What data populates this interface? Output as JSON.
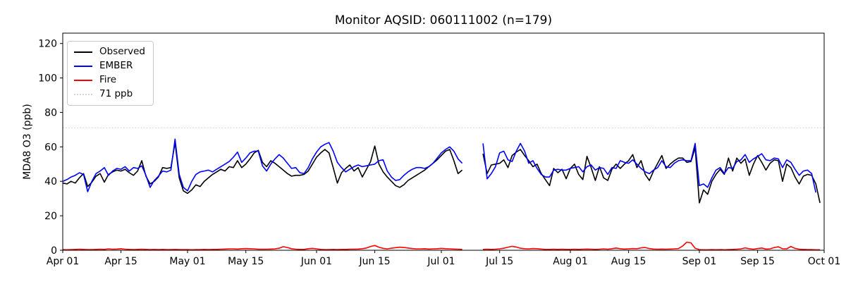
{
  "chart_data": {
    "type": "line",
    "title": "Monitor AQSID: 060111002 (n=179)",
    "ylabel": "MDA8 O3 (ppb)",
    "n_points": 179,
    "ylim": [
      0,
      126
    ],
    "yticks": [
      0,
      20,
      40,
      60,
      80,
      100,
      120
    ],
    "x_total_days": 183,
    "x_cadence": "daily",
    "grid": false,
    "legend_position": "upper left",
    "xticks": [
      {
        "label": "Apr 01",
        "day": 0
      },
      {
        "label": "Apr 15",
        "day": 14
      },
      {
        "label": "May 01",
        "day": 30
      },
      {
        "label": "May 15",
        "day": 44
      },
      {
        "label": "Jun 01",
        "day": 61
      },
      {
        "label": "Jun 15",
        "day": 75
      },
      {
        "label": "Jul 01",
        "day": 91
      },
      {
        "label": "Jul 15",
        "day": 105
      },
      {
        "label": "Aug 01",
        "day": 122
      },
      {
        "label": "Aug 15",
        "day": 136
      },
      {
        "label": "Sep 01",
        "day": 153
      },
      {
        "label": "Sep 15",
        "day": 167
      },
      {
        "label": "Oct 01",
        "day": 183
      }
    ],
    "threshold": {
      "label": "71 ppb",
      "value": 71,
      "color": "#d3d3d3",
      "linestyle": "dotted"
    },
    "series": [
      {
        "name": "Observed",
        "color": "#000000",
        "linestyle": "solid",
        "values": [
          39,
          38.5,
          40,
          39,
          42,
          44.5,
          37,
          39.5,
          43,
          44.5,
          39.5,
          44,
          45.5,
          46.5,
          46,
          47,
          45,
          43.5,
          46,
          52,
          43,
          38.5,
          40,
          42.5,
          48,
          47.5,
          48,
          62.5,
          42,
          34.5,
          33,
          35,
          38,
          37,
          40,
          42,
          44,
          45.5,
          47,
          46,
          48.5,
          48,
          52,
          48,
          50,
          53,
          56.5,
          58,
          51,
          48.5,
          52,
          50.5,
          48.5,
          46.5,
          44.5,
          43,
          43.5,
          43.5,
          44,
          46,
          50,
          54,
          56.5,
          58.5,
          56.5,
          48,
          39,
          45,
          47.5,
          49.5,
          46,
          48,
          42.5,
          47,
          51.5,
          60.5,
          50,
          45.5,
          42.5,
          40,
          37.5,
          36.5,
          38,
          40.5,
          42,
          43.5,
          45,
          46.5,
          48.5,
          50.5,
          52.5,
          55,
          57.5,
          58.5,
          52,
          44.5,
          46.5,
          null,
          null,
          null,
          null,
          56,
          44.5,
          49.5,
          50,
          50.5,
          52.5,
          48,
          55,
          57,
          58.5,
          55,
          52,
          48.5,
          50,
          44.5,
          41,
          37.5,
          47.5,
          45,
          47,
          41.5,
          47.5,
          50,
          44,
          41,
          54.5,
          48,
          40.5,
          48.5,
          42,
          40.5,
          47,
          50,
          47.5,
          50,
          52,
          55.5,
          48,
          52,
          44,
          40.5,
          46,
          50.5,
          55,
          47.5,
          50,
          52,
          53.5,
          53.5,
          51,
          51.5,
          59.5,
          27.5,
          35,
          32.5,
          40,
          44,
          47,
          44,
          53.5,
          46,
          53.5,
          50.5,
          53,
          43.5,
          50,
          55,
          51,
          46.5,
          50.5,
          52.5,
          52,
          40,
          50,
          48,
          42.5,
          38.5,
          43,
          44,
          43.5,
          38.5,
          27.5
        ]
      },
      {
        "name": "EMBER",
        "color": "#0000ff",
        "linestyle": "solid",
        "values": [
          40,
          41,
          42.5,
          43.5,
          45,
          44,
          34,
          40,
          44.5,
          46,
          48,
          43.5,
          46,
          47.5,
          47,
          48.5,
          46,
          48,
          47.5,
          49,
          43.5,
          36.5,
          40.5,
          43,
          46,
          45.5,
          46.5,
          64.5,
          44,
          36.5,
          34.5,
          40,
          44,
          45.5,
          46,
          46.5,
          45.5,
          47,
          48.5,
          50,
          51.5,
          54,
          57,
          51,
          53.5,
          56.5,
          57.5,
          57.5,
          49,
          46,
          50,
          53,
          55.5,
          53.5,
          50.5,
          47.5,
          48,
          45,
          44.5,
          48,
          53,
          57,
          60,
          61.5,
          62.5,
          57.5,
          51,
          48,
          45.5,
          47,
          48.5,
          49.5,
          48.5,
          49,
          49.5,
          50,
          52,
          52.5,
          46,
          42.5,
          40.5,
          41,
          43.5,
          45.5,
          47,
          48,
          48,
          47.5,
          48.5,
          50.5,
          53.5,
          56.5,
          58.5,
          60,
          57.5,
          53,
          50.5,
          null,
          null,
          null,
          null,
          62,
          41.5,
          44.5,
          48.5,
          56.5,
          57.5,
          52.5,
          51.5,
          57.5,
          62,
          57.5,
          50.5,
          52,
          47.5,
          44,
          42.5,
          42.5,
          46.5,
          47,
          46.5,
          46.5,
          47.5,
          48,
          48.5,
          45.5,
          48.5,
          49.5,
          46.5,
          48,
          47.5,
          44,
          48,
          47.5,
          52,
          51,
          50.5,
          52.5,
          50,
          47.5,
          45.5,
          44.5,
          46.5,
          48,
          52,
          48.5,
          48,
          50.5,
          52,
          52.5,
          52,
          52,
          62,
          37.5,
          38.5,
          36.5,
          42,
          46.5,
          48,
          44.5,
          48,
          47.5,
          51.5,
          52.5,
          55.5,
          51,
          53,
          54.5,
          56,
          52.5,
          52,
          53.5,
          53,
          48,
          52.5,
          51,
          47,
          43.5,
          46,
          46.5,
          44.5,
          33.5,
          null
        ]
      },
      {
        "name": "Fire",
        "color": "#ff0000",
        "linestyle": "solid",
        "values": [
          0.4,
          0.3,
          0.4,
          0.5,
          0.6,
          0.5,
          0.4,
          0.4,
          0.5,
          0.6,
          0.5,
          0.8,
          0.6,
          0.7,
          0.9,
          0.6,
          0.5,
          0.4,
          0.5,
          0.6,
          0.5,
          0.4,
          0.5,
          0.4,
          0.5,
          0.4,
          0.4,
          0.5,
          0.4,
          0.4,
          0.4,
          0.3,
          0.4,
          0.4,
          0.5,
          0.4,
          0.5,
          0.5,
          0.6,
          0.7,
          0.8,
          0.8,
          0.7,
          0.9,
          1.0,
          0.9,
          0.8,
          0.6,
          0.6,
          0.6,
          0.7,
          0.8,
          1.2,
          2.1,
          1.6,
          0.9,
          0.6,
          0.5,
          0.5,
          0.9,
          1.1,
          0.8,
          0.5,
          0.4,
          0.4,
          0.5,
          0.4,
          0.5,
          0.5,
          0.6,
          0.6,
          0.7,
          0.9,
          1.3,
          2.2,
          2.8,
          1.8,
          1.1,
          0.8,
          1.2,
          1.5,
          1.8,
          1.6,
          1.3,
          1.0,
          0.8,
          0.8,
          0.9,
          0.7,
          0.8,
          0.9,
          1.1,
          0.9,
          0.8,
          0.7,
          0.6,
          0.5,
          null,
          null,
          null,
          null,
          0.5,
          0.6,
          0.5,
          0.6,
          0.8,
          1.2,
          1.8,
          2.3,
          1.9,
          1.2,
          0.9,
          0.8,
          1.0,
          0.9,
          0.7,
          0.5,
          0.5,
          0.6,
          0.5,
          0.6,
          0.5,
          0.5,
          0.6,
          0.5,
          0.6,
          0.7,
          0.6,
          0.5,
          0.6,
          0.8,
          0.6,
          0.9,
          1.3,
          0.9,
          0.7,
          0.8,
          1.0,
          0.9,
          1.4,
          1.6,
          1.0,
          0.7,
          0.6,
          0.7,
          0.6,
          0.7,
          0.8,
          1.0,
          2.5,
          4.7,
          4.3,
          1.2,
          0.4,
          0.3,
          0.3,
          0.4,
          0.3,
          0.4,
          0.3,
          0.4,
          0.5,
          0.6,
          0.8,
          1.4,
          0.9,
          0.6,
          1.0,
          1.3,
          0.7,
          0.8,
          1.6,
          2.0,
          0.9,
          0.8,
          2.2,
          1.1,
          0.6,
          0.5,
          0.4,
          0.4,
          0.3,
          0.3
        ]
      }
    ]
  },
  "legend": {
    "items": [
      {
        "label": "Observed",
        "color": "#000000",
        "style": "solid"
      },
      {
        "label": "EMBER",
        "color": "#0000ff",
        "style": "solid"
      },
      {
        "label": "Fire",
        "color": "#ff0000",
        "style": "solid"
      },
      {
        "label": "71 ppb",
        "color": "#d3d3d3",
        "style": "dotted"
      }
    ]
  }
}
